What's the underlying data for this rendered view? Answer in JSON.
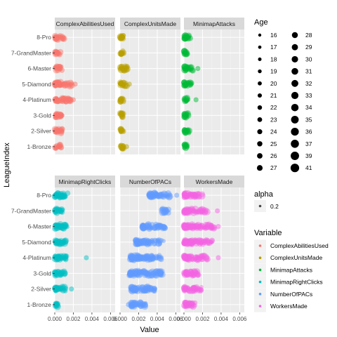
{
  "chart_data": {
    "type": "scatter",
    "facet_layout": "3 columns x 2 rows",
    "xlabel": "Value",
    "ylabel": "LeagueIndex",
    "xlim": [
      0,
      0.0065
    ],
    "x_ticks": [
      0.0,
      0.002,
      0.004,
      0.006
    ],
    "x_tick_labels": [
      "0.000",
      "0.002",
      "0.004",
      "0.006"
    ],
    "categories": [
      "1-Bronze",
      "2-Silver",
      "3-Gold",
      "4-Platinum",
      "5-Diamond",
      "6-Master",
      "7-GrandMaster",
      "8-Pro"
    ],
    "grid": true,
    "panels": [
      {
        "name": "ComplexAbilitiesUsed",
        "color": "#F8766D",
        "ranges": [
          [
            3e-05,
            0.0007
          ],
          [
            3e-05,
            0.0009
          ],
          [
            3e-05,
            0.0011
          ],
          [
            3e-05,
            0.0017
          ],
          [
            3e-05,
            0.0019
          ],
          [
            3e-05,
            0.0008
          ],
          [
            3e-05,
            0.0006
          ],
          [
            3e-05,
            0.001
          ]
        ],
        "outliers": [
          [
            4,
            0.002
          ],
          [
            5,
            0.0022
          ]
        ]
      },
      {
        "name": "ComplexUnitsMade",
        "color": "#B79F00",
        "ranges": [
          [
            3e-05,
            0.0004
          ],
          [
            3e-05,
            0.0004
          ],
          [
            3e-05,
            0.0005
          ],
          [
            3e-05,
            0.0005
          ],
          [
            3e-05,
            0.0008
          ],
          [
            3e-05,
            0.0008
          ],
          [
            3e-05,
            0.0004
          ],
          [
            3e-05,
            0.0004
          ]
        ],
        "outliers": [
          [
            5,
            0.001
          ],
          [
            1,
            0.0007
          ]
        ]
      },
      {
        "name": "MinimapAttacks",
        "color": "#00BA38",
        "ranges": [
          [
            3e-05,
            0.0004
          ],
          [
            3e-05,
            0.0006
          ],
          [
            3e-05,
            0.0005
          ],
          [
            3e-05,
            0.0005
          ],
          [
            3e-05,
            0.0009
          ],
          [
            3e-05,
            0.001
          ],
          [
            3e-05,
            0.0004
          ],
          [
            3e-05,
            0.0007
          ]
        ],
        "outliers": [
          [
            6,
            0.0015
          ],
          [
            4,
            0.0013
          ]
        ]
      },
      {
        "name": "MinimapRightClicks",
        "color": "#00BFC4",
        "ranges": [
          [
            3e-05,
            0.0004
          ],
          [
            3e-05,
            0.0013
          ],
          [
            3e-05,
            0.0011
          ],
          [
            3e-05,
            0.0013
          ],
          [
            3e-05,
            0.0013
          ],
          [
            3e-05,
            0.0014
          ],
          [
            3e-05,
            0.001
          ],
          [
            3e-05,
            0.0014
          ]
        ],
        "outliers": [
          [
            4,
            0.0034
          ],
          [
            2,
            0.0018
          ]
        ]
      },
      {
        "name": "NumberOfPACs",
        "color": "#619CFF",
        "ranges": [
          [
            0.0012,
            0.0028
          ],
          [
            0.0012,
            0.0038
          ],
          [
            0.001,
            0.0046
          ],
          [
            0.0011,
            0.0046
          ],
          [
            0.0017,
            0.0047
          ],
          [
            0.0024,
            0.0049
          ],
          [
            0.0045,
            0.0053
          ],
          [
            0.0031,
            0.0054
          ]
        ],
        "outliers": [
          [
            8,
            0.0061
          ],
          [
            1,
            0.0009
          ]
        ]
      },
      {
        "name": "WorkersMade",
        "color": "#F564E3",
        "ranges": [
          [
            3e-05,
            0.0013
          ],
          [
            3e-05,
            0.0019
          ],
          [
            3e-05,
            0.0016
          ],
          [
            3e-05,
            0.0025
          ],
          [
            3e-05,
            0.0032
          ],
          [
            3e-05,
            0.0033
          ],
          [
            3e-05,
            0.0026
          ],
          [
            3e-05,
            0.002
          ]
        ],
        "outliers": [
          [
            6,
            0.0037
          ],
          [
            4,
            0.0037
          ],
          [
            7,
            0.0036
          ]
        ]
      }
    ]
  },
  "legend": {
    "size_title": "Age",
    "ages": [
      "16",
      "17",
      "18",
      "19",
      "20",
      "21",
      "22",
      "23",
      "24",
      "25",
      "26",
      "27",
      "28",
      "29",
      "30",
      "31",
      "32",
      "33",
      "34",
      "35",
      "36",
      "37",
      "39",
      "41"
    ],
    "alpha_title": "alpha",
    "alpha_value": "0.2",
    "variable_title": "Variable",
    "variables": [
      {
        "label": "ComplexAbilitiesUsed",
        "color": "#F8766D"
      },
      {
        "label": "ComplexUnitsMade",
        "color": "#B79F00"
      },
      {
        "label": "MinimapAttacks",
        "color": "#00BA38"
      },
      {
        "label": "MinimapRightClicks",
        "color": "#00BFC4"
      },
      {
        "label": "NumberOfPACs",
        "color": "#619CFF"
      },
      {
        "label": "WorkersMade",
        "color": "#F564E3"
      }
    ]
  }
}
